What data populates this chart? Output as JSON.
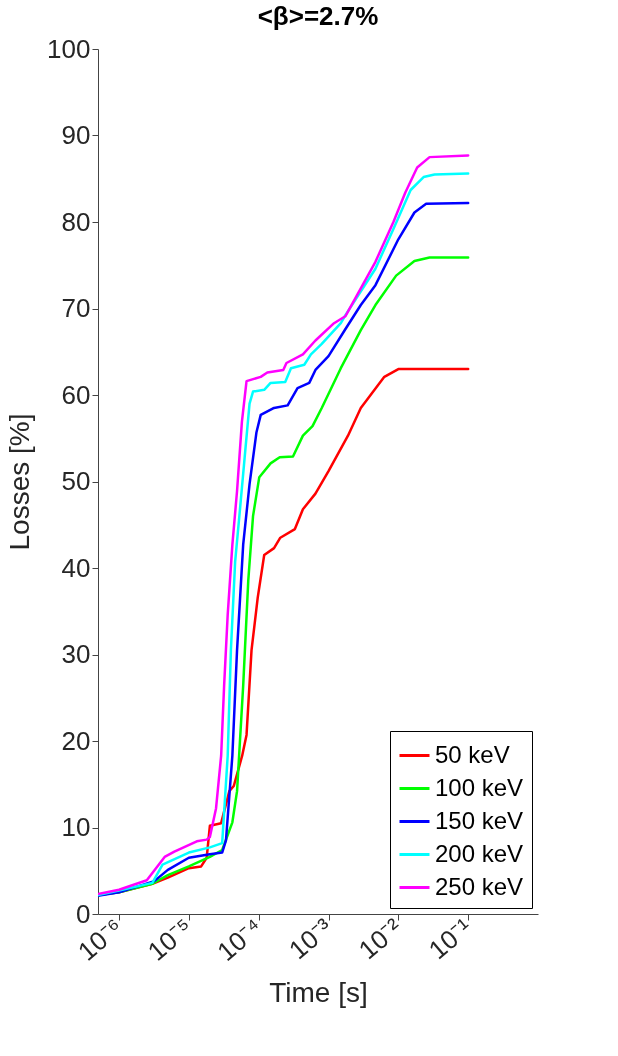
{
  "chart_data": {
    "type": "line",
    "title": "<β>=2.7%",
    "xlabel": "Time [s]",
    "ylabel": "Losses [%]",
    "log": "x",
    "xlim": [
      5e-07,
      1
    ],
    "ylim": [
      0,
      100
    ],
    "xticks": [
      {
        "value": 1e-06,
        "label": "10⁻⁶"
      },
      {
        "value": 1e-05,
        "label": "10⁻⁵"
      },
      {
        "value": 0.0001,
        "label": "10⁻⁴"
      },
      {
        "value": 0.001,
        "label": "10⁻³"
      },
      {
        "value": 0.01,
        "label": "10⁻²"
      },
      {
        "value": 0.1,
        "label": "10⁻¹"
      }
    ],
    "yticks": [
      0,
      10,
      20,
      30,
      40,
      50,
      60,
      70,
      80,
      90,
      100
    ],
    "grid": false,
    "legend": "bottom right",
    "line_style": "solid",
    "marker": "none",
    "series": [
      {
        "name": "50 keV",
        "color": "#ff0000",
        "x": [
          5e-07,
          1e-06,
          3e-06,
          5e-06,
          1e-05,
          1.5e-05,
          1.8e-05,
          2e-05,
          2.9e-05,
          3.8e-05,
          4.4e-05,
          5.8e-05,
          6.7e-05,
          7.9e-05,
          9.7e-05,
          0.00012,
          0.000166,
          0.000204,
          0.00033,
          0.00043,
          0.00065,
          0.001,
          0.0019,
          0.0029,
          0.0063,
          0.01,
          0.1
        ],
        "values": [
          2.2,
          2.5,
          3.5,
          4.2,
          5.3,
          5.5,
          6.5,
          10.2,
          10.5,
          14.2,
          14.8,
          18.3,
          20.7,
          30.5,
          36.6,
          41.5,
          42.3,
          43.5,
          44.5,
          46.8,
          48.6,
          51.2,
          55.3,
          58.5,
          62.1,
          63.0,
          63.0
        ]
      },
      {
        "name": "100 keV",
        "color": "#00ff00",
        "x": [
          5e-07,
          1e-06,
          3e-06,
          5e-06,
          1e-05,
          2e-05,
          3e-05,
          4.2e-05,
          4.9e-05,
          6e-05,
          7.1e-05,
          8.3e-05,
          0.000102,
          0.000148,
          0.0002,
          0.00031,
          0.00043,
          0.00059,
          0.0008,
          0.0015,
          0.0029,
          0.0047,
          0.0093,
          0.017,
          0.028,
          0.1
        ],
        "values": [
          2.2,
          2.5,
          3.5,
          4.5,
          5.5,
          6.6,
          7.4,
          10.6,
          14.2,
          26.4,
          38.6,
          46,
          50.5,
          52.1,
          52.8,
          52.9,
          55.3,
          56.4,
          58.5,
          63.1,
          67.5,
          70.4,
          73.8,
          75.5,
          75.9,
          75.9
        ]
      },
      {
        "name": "150 keV",
        "color": "#0000ff",
        "x": [
          5e-07,
          1e-06,
          3.2e-06,
          5e-06,
          1e-05,
          2e-05,
          3e-05,
          3.4e-05,
          4.2e-05,
          4.9e-05,
          6e-05,
          7.4e-05,
          9.3e-05,
          0.000107,
          0.000166,
          0.00026,
          0.00036,
          0.00053,
          0.00065,
          0.001,
          0.00174,
          0.0029,
          0.0047,
          0.01,
          0.017,
          0.025,
          0.1
        ],
        "values": [
          2.1,
          2.5,
          3.8,
          5.1,
          6.5,
          6.9,
          7.1,
          8.5,
          18.3,
          30.5,
          42.7,
          49.7,
          55.7,
          57.7,
          58.5,
          58.8,
          60.8,
          61.4,
          62.9,
          64.5,
          67.6,
          70.4,
          72.7,
          78.0,
          81.1,
          82.1,
          82.2
        ]
      },
      {
        "name": "200 keV",
        "color": "#00ffff",
        "x": [
          5e-07,
          1e-06,
          3e-06,
          4.2e-06,
          1e-05,
          2e-05,
          3e-05,
          3.6e-05,
          4e-05,
          4.6e-05,
          5.4e-05,
          6.3e-05,
          7.4e-05,
          8.3e-05,
          0.00012,
          0.000148,
          0.00024,
          0.00029,
          0.00045,
          0.00056,
          0.0008,
          0.0015,
          0.00174,
          0.0047,
          0.0085,
          0.015,
          0.023,
          0.033,
          0.1
        ],
        "values": [
          2.2,
          2.7,
          3.6,
          5.7,
          7.1,
          7.7,
          8.2,
          18.3,
          30.5,
          40.7,
          46.8,
          52.8,
          59,
          60.4,
          60.6,
          61.4,
          61.5,
          63.1,
          63.5,
          64.7,
          65.9,
          68.3,
          69.2,
          74.6,
          79.2,
          83.7,
          85.2,
          85.5,
          85.6
        ]
      },
      {
        "name": "250 keV",
        "color": "#ff00ff",
        "x": [
          5e-07,
          1e-06,
          2.5e-06,
          4.5e-06,
          6.2e-06,
          1.3e-05,
          1.8e-05,
          2e-05,
          2.45e-05,
          2.9e-05,
          3.2e-05,
          3.6e-05,
          4.2e-05,
          4.9e-05,
          5.75e-05,
          6.7e-05,
          0.000107,
          0.000133,
          0.000225,
          0.00025,
          0.00043,
          0.00065,
          0.0012,
          0.00174,
          0.0047,
          0.0085,
          0.0126,
          0.0186,
          0.028,
          0.1
        ],
        "values": [
          2.3,
          2.8,
          3.9,
          6.6,
          7.2,
          8.4,
          8.6,
          8.9,
          12.2,
          18.3,
          26.4,
          34.6,
          42.7,
          48.9,
          56.9,
          61.6,
          62.1,
          62.6,
          62.9,
          63.7,
          64.7,
          66.3,
          68.3,
          69.1,
          75.4,
          80,
          83.4,
          86.3,
          87.5,
          87.7
        ]
      }
    ]
  }
}
